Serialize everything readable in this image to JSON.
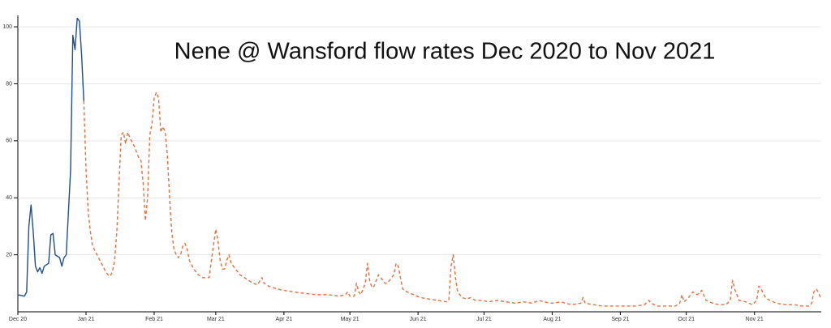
{
  "chart_data": {
    "type": "line",
    "title": "Nene @ Wansford flow rates Dec 2020 to Nov 2021",
    "xlim": [
      0,
      365
    ],
    "ylim": [
      0,
      104
    ],
    "grid": true,
    "xticks": [
      {
        "value": 0,
        "label": "Dec 20"
      },
      {
        "value": 31,
        "label": "Jan 21"
      },
      {
        "value": 62,
        "label": "Feb 21"
      },
      {
        "value": 90,
        "label": "Mar 21"
      },
      {
        "value": 121,
        "label": "Apr 21"
      },
      {
        "value": 151,
        "label": "May 21"
      },
      {
        "value": 182,
        "label": "Jun 21"
      },
      {
        "value": 212,
        "label": "Jul 21"
      },
      {
        "value": 243,
        "label": "Aug 21"
      },
      {
        "value": 274,
        "label": "Sep 21"
      },
      {
        "value": 304,
        "label": "Oct 21"
      },
      {
        "value": 335,
        "label": "Nov 21"
      }
    ],
    "yticks": [
      20,
      40,
      60,
      80,
      100
    ],
    "series": [
      {
        "color": "#1f4e8c",
        "dash": false,
        "x": [
          0,
          3,
          4,
          5,
          6,
          7,
          8,
          9,
          10,
          11,
          12,
          14,
          15,
          16,
          17,
          19,
          20,
          21,
          22,
          23,
          24,
          25,
          26,
          27,
          28,
          29,
          30
        ],
        "values": [
          6,
          5.5,
          7,
          30,
          37.5,
          28,
          16,
          14,
          15.5,
          13.5,
          16,
          17,
          27,
          27.5,
          20,
          19,
          16,
          19,
          20,
          35,
          50,
          97,
          92,
          103,
          102,
          90,
          74
        ]
      },
      {
        "color": "#e3703d",
        "dash": true,
        "x": [
          30,
          31,
          32,
          33,
          34,
          36,
          38,
          40,
          41,
          42,
          43,
          44,
          45,
          46,
          47,
          48,
          49,
          50,
          51,
          53,
          54,
          55,
          56,
          57,
          58,
          59,
          60,
          61,
          62,
          63,
          64,
          65,
          66,
          67,
          68,
          69,
          70,
          71,
          72,
          73,
          74,
          75,
          76,
          77,
          78,
          80,
          82,
          84,
          87,
          88,
          90,
          91,
          92,
          93,
          94,
          95,
          96,
          97,
          99,
          101,
          103,
          105,
          107,
          109,
          111,
          112,
          114,
          118,
          121,
          125,
          130,
          136,
          141,
          146,
          149,
          150,
          151,
          153,
          154,
          155,
          156,
          158,
          159,
          160,
          161,
          162,
          163,
          164,
          165,
          166,
          167,
          168,
          170,
          171,
          172,
          173,
          174,
          175,
          177,
          180,
          183,
          187,
          191,
          195,
          196,
          197,
          198,
          199,
          200,
          202,
          204,
          206,
          208,
          211,
          214,
          218,
          222,
          226,
          230,
          234,
          237,
          239,
          243,
          247,
          249,
          252,
          256,
          257,
          258,
          262,
          266,
          270,
          276,
          281,
          285,
          287,
          288,
          291,
          295,
          299,
          301,
          302,
          303,
          305,
          307,
          309,
          311,
          313,
          316,
          319,
          322,
          324,
          325,
          326,
          328,
          331,
          334,
          336,
          337,
          338,
          340,
          342,
          345,
          349,
          353,
          357,
          360,
          361,
          362,
          363,
          364,
          365
        ],
        "values": [
          74,
          50,
          35,
          28,
          23,
          20,
          17,
          14,
          13,
          12.5,
          14,
          18,
          28,
          45,
          62,
          63,
          59,
          63,
          61,
          58,
          56,
          54,
          53,
          45,
          32,
          40,
          62,
          66,
          75,
          77,
          75,
          63,
          65,
          63,
          55,
          40,
          28,
          22,
          20,
          19,
          20,
          23,
          24,
          22,
          18,
          15,
          13,
          12,
          12,
          18,
          29,
          25,
          18,
          15,
          15,
          18,
          20,
          17,
          15,
          13,
          12,
          11,
          10,
          9.5,
          12,
          10,
          9,
          8,
          7.5,
          7,
          6.5,
          6,
          6,
          5.5,
          6,
          7,
          5.5,
          5.5,
          10,
          7,
          6,
          10,
          17,
          11,
          8.5,
          9,
          11,
          13,
          12,
          11,
          10,
          10,
          12,
          13,
          17,
          16,
          12,
          8,
          7,
          6,
          5,
          4.5,
          4,
          3.5,
          4,
          16,
          20,
          12,
          7,
          5,
          4.5,
          5,
          4,
          4,
          3.5,
          4,
          3.5,
          3,
          3.5,
          3,
          4,
          3.5,
          3,
          3.5,
          3,
          2.5,
          3,
          5,
          3,
          2.5,
          2,
          2,
          2,
          2,
          2.5,
          4,
          3,
          2,
          2,
          2,
          3,
          6,
          3.5,
          5,
          7,
          6,
          7.5,
          4,
          3,
          2.5,
          2.5,
          4,
          11,
          8,
          4,
          3.5,
          2.5,
          4,
          9,
          8,
          5,
          4,
          3,
          2.5,
          2.5,
          2,
          2,
          3,
          7,
          8,
          7,
          5
        ]
      }
    ]
  }
}
